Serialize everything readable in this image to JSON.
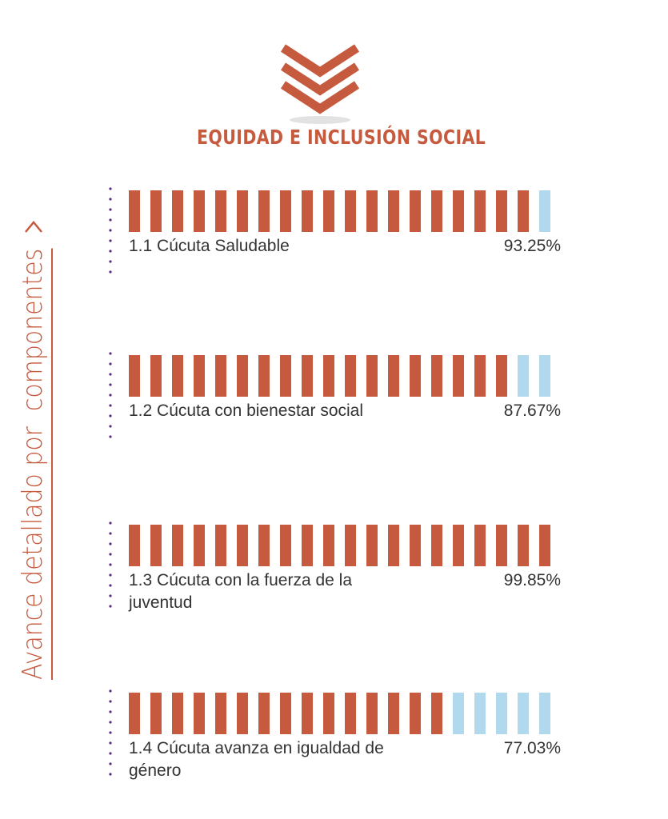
{
  "header": {
    "title": "EQUIDAD E INCLUSIÓN SOCIAL",
    "logo_icon": "triple-chevron-down-icon"
  },
  "side": {
    "label": "Avance detallado por  componentes",
    "arrow_icon": "chevron-right-icon"
  },
  "colors": {
    "accent": "#c55a3e",
    "remaining": "#b1d9ee",
    "dots": "#5b2c83",
    "text": "#333333"
  },
  "chart_data": {
    "type": "bar",
    "orientation": "horizontal",
    "segments_per_bar": 20,
    "categories": [
      "1.1 Cúcuta Saludable",
      "1.2 Cúcuta con bienestar social",
      "1.3 Cúcuta con la fuerza de la juventud",
      "1.4 Cúcuta avanza en igualdad de género"
    ],
    "values": [
      93.25,
      87.67,
      99.85,
      77.03
    ],
    "value_labels": [
      "93.25%",
      "87.67%",
      "99.85%",
      "77.03%"
    ],
    "ylim": [
      0,
      100
    ]
  }
}
